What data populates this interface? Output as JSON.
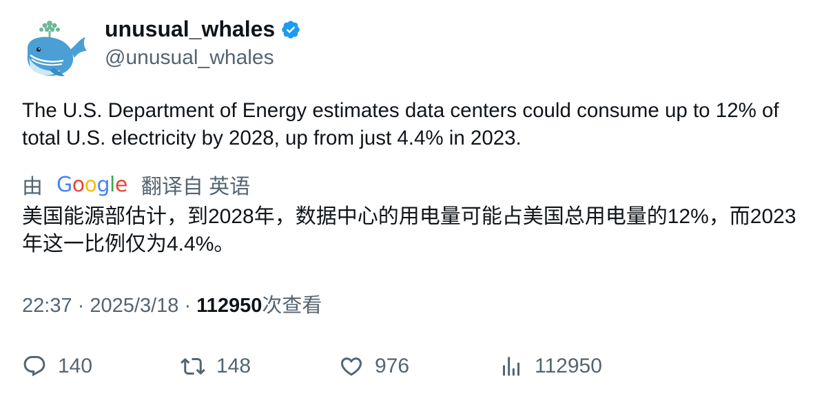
{
  "author": {
    "display_name": "unusual_whales",
    "handle": "@unusual_whales",
    "verified": true,
    "verified_color": "#1d9bf0",
    "avatar_icon": "whale-icon"
  },
  "tweet": {
    "text": "The U.S. Department of Energy estimates data centers could consume up to 12% of total U.S. electricity by 2028, up from just 4.4% in 2023."
  },
  "translation": {
    "prefix": "由",
    "provider": "Google",
    "suffix": "翻译自 英语",
    "text": "美国能源部估计，到2028年，数据中心的用电量可能占美国总用电量的12%，而2023年这一比例仅为4.4%。"
  },
  "meta": {
    "time": "22:37",
    "separator": "·",
    "date": "2025/3/18",
    "views_count": "112950",
    "views_label": "次查看"
  },
  "actions": {
    "replies": "140",
    "retweets": "148",
    "likes": "976",
    "views": "112950"
  },
  "colors": {
    "text_primary": "#0f1419",
    "text_secondary": "#536471",
    "google_blue": "#4285F4",
    "google_red": "#EA4335",
    "google_yellow": "#FBBC05",
    "google_green": "#34A853"
  }
}
